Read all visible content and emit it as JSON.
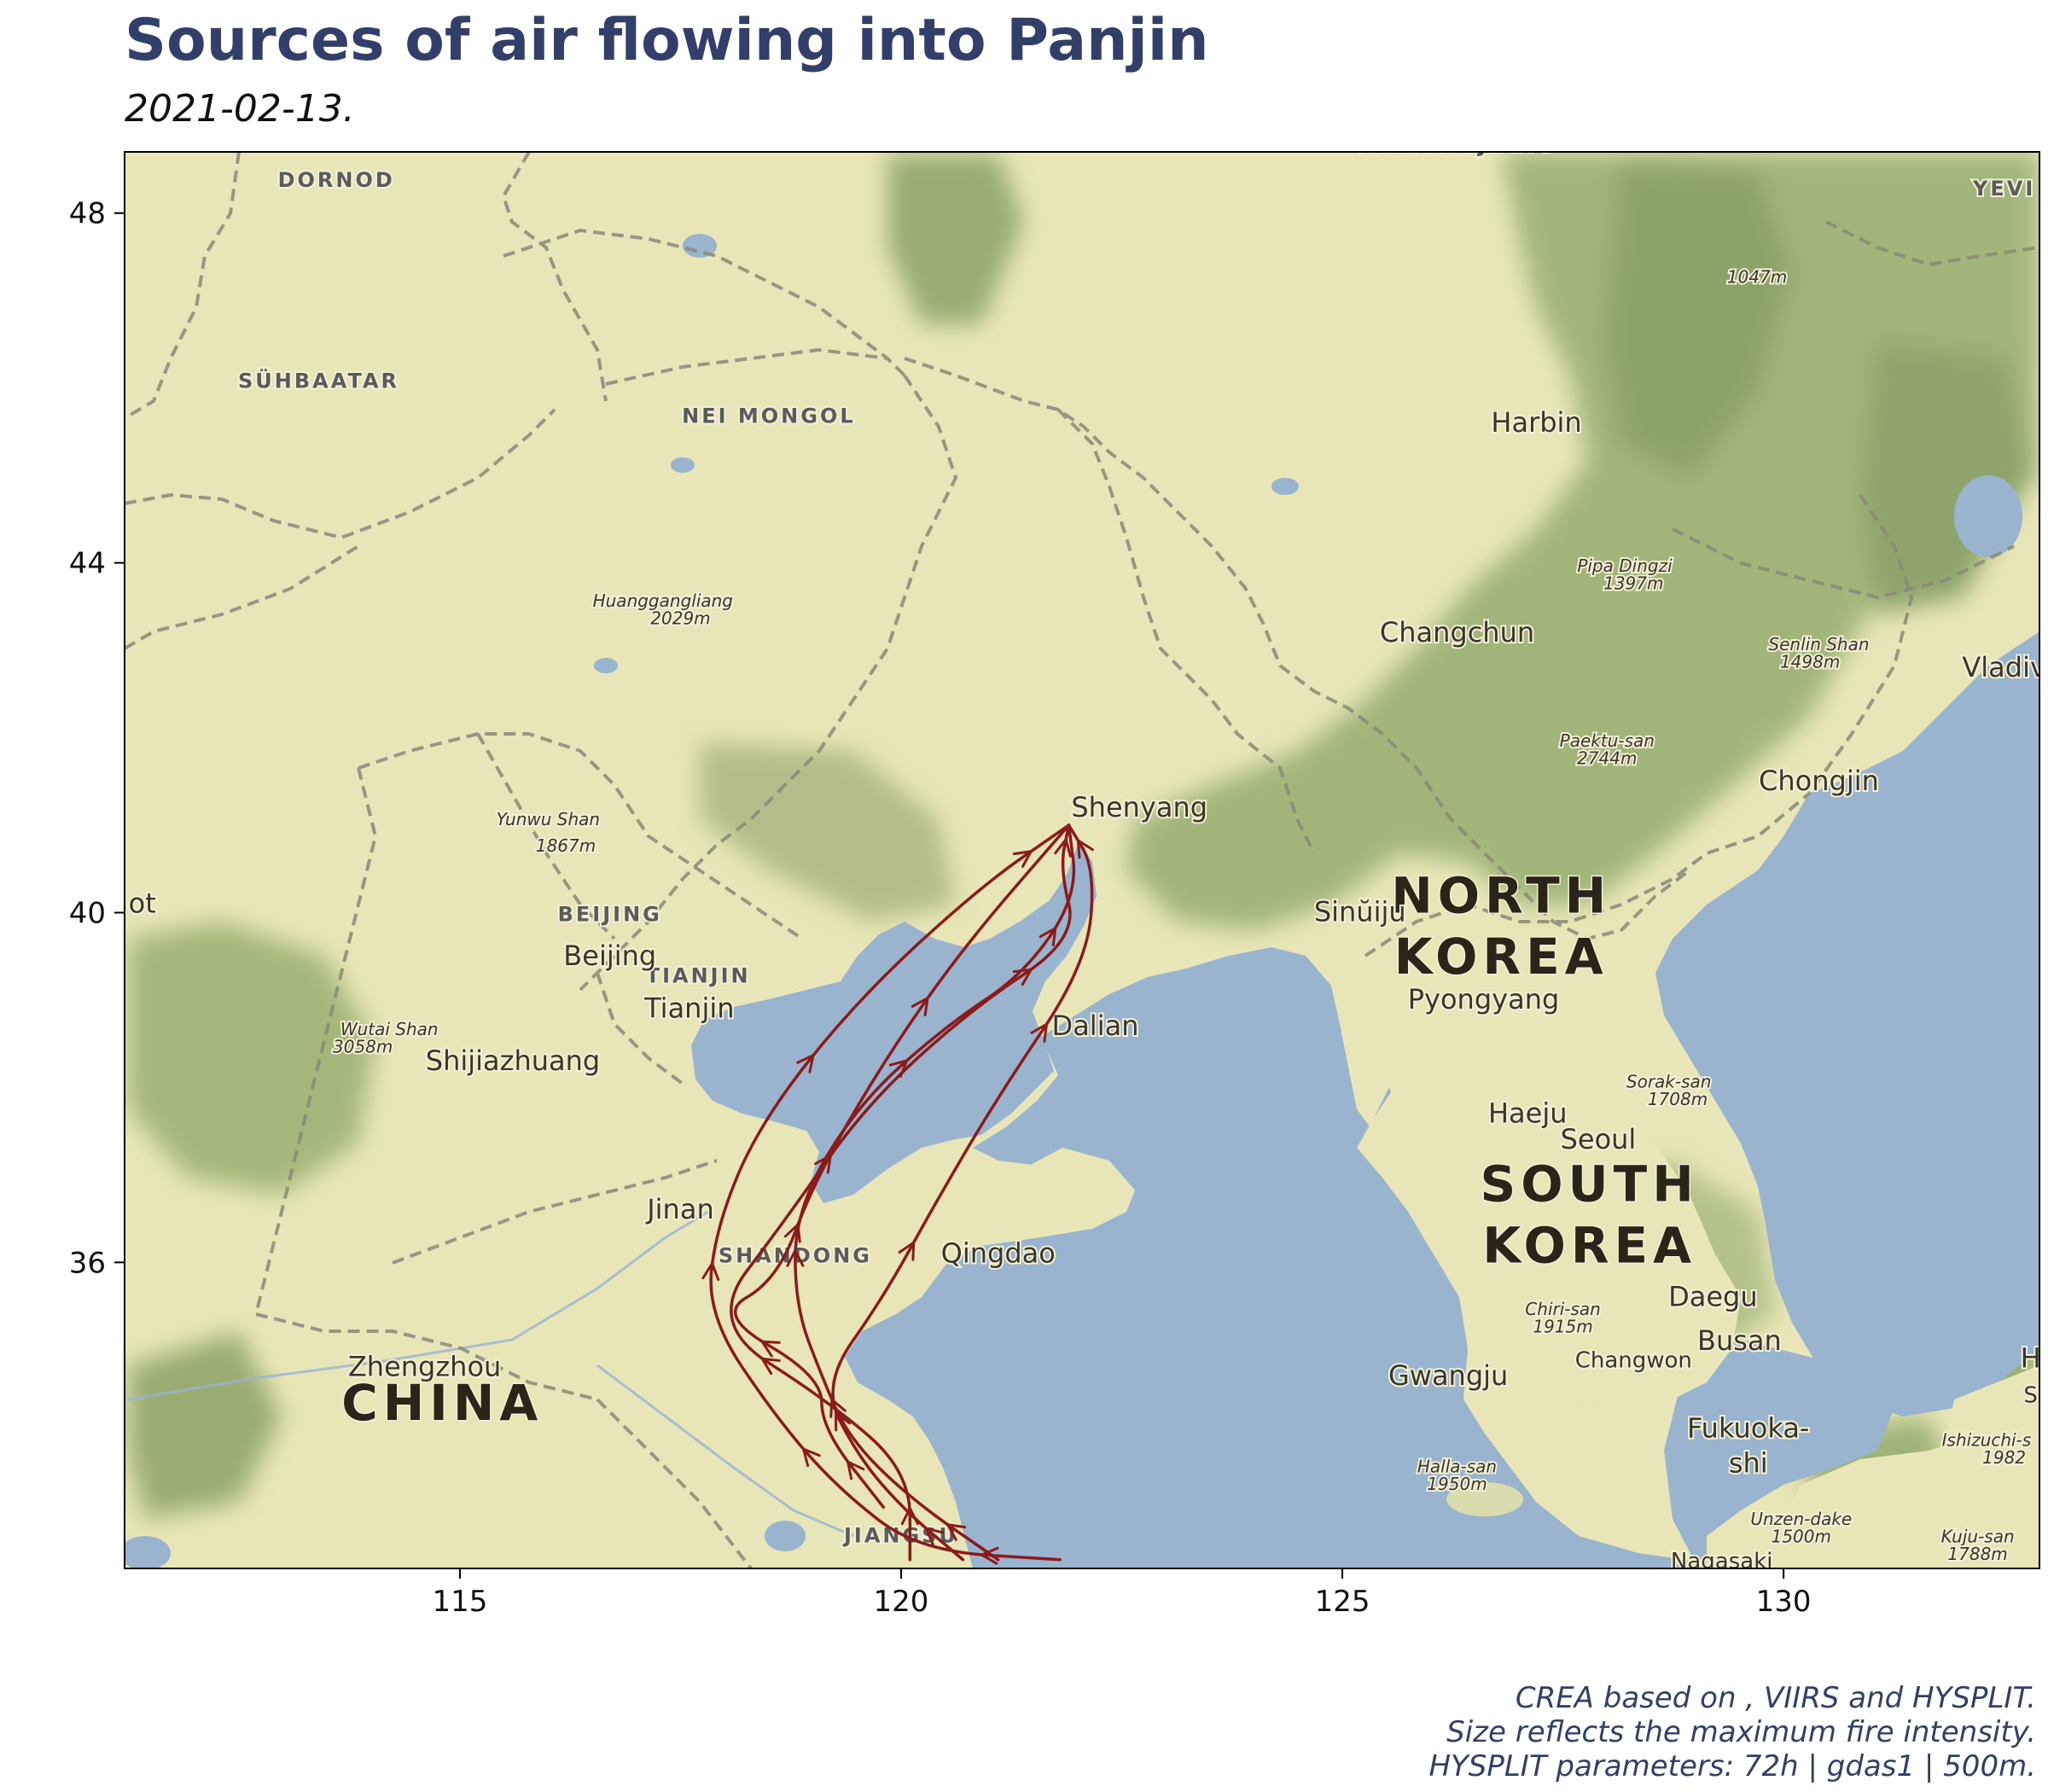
{
  "title": "Sources of air flowing into Panjin",
  "subtitle": "2021-02-13.",
  "caption": [
    "CREA based on , VIIRS and HYSPLIT.",
    "Size reflects the maximum fire intensity.",
    "HYSPLIT parameters: 72h | gdas1 | 500m."
  ],
  "colors": {
    "land": "#e8e6b8",
    "water": "#9ab3cf",
    "mountain": "#7e9a5c",
    "trajectory": "#8b1a1a",
    "title": "#333f6b"
  },
  "chart_data": {
    "type": "map",
    "x_ticks": [
      115,
      120,
      125,
      130
    ],
    "y_ticks": [
      48,
      44,
      40,
      36
    ],
    "xlim": [
      111.2,
      132.9
    ],
    "ylim": [
      32.5,
      48.7
    ],
    "place_labels": [
      {
        "text": "DORNOD",
        "lon": 113.6,
        "lat": 48.3,
        "style": "region"
      },
      {
        "text": "SÜHBAATAR",
        "lon": 113.4,
        "lat": 46.0,
        "style": "region"
      },
      {
        "text": "NEI MONGOL",
        "lon": 118.5,
        "lat": 45.6,
        "style": "region"
      },
      {
        "text": "HEILONGJIANG",
        "lon": 126.3,
        "lat": 48.7,
        "style": "region"
      },
      {
        "text": "YEVI",
        "lon": 132.5,
        "lat": 48.2,
        "style": "region"
      },
      {
        "text": "BEIJING",
        "lon": 116.7,
        "lat": 39.9,
        "style": "region"
      },
      {
        "text": "TIANJIN",
        "lon": 117.7,
        "lat": 39.2,
        "style": "region"
      },
      {
        "text": "SHANDONG",
        "lon": 118.8,
        "lat": 36.0,
        "style": "region"
      },
      {
        "text": "JIANGSU",
        "lon": 120.0,
        "lat": 32.8,
        "style": "region"
      },
      {
        "text": "CHINA",
        "lon": 114.8,
        "lat": 34.2,
        "style": "country"
      },
      {
        "text": "NORTH",
        "lon": 126.8,
        "lat": 40.0,
        "style": "country"
      },
      {
        "text": "KOREA",
        "lon": 126.8,
        "lat": 39.3,
        "style": "country"
      },
      {
        "text": "SOUTH",
        "lon": 127.8,
        "lat": 36.7,
        "style": "country"
      },
      {
        "text": "KOREA",
        "lon": 127.8,
        "lat": 36.0,
        "style": "country"
      },
      {
        "text": "Harbin",
        "lon": 127.2,
        "lat": 45.5,
        "style": "city"
      },
      {
        "text": "Changchun",
        "lon": 126.3,
        "lat": 43.1,
        "style": "city"
      },
      {
        "text": "Shenyang",
        "lon": 122.7,
        "lat": 41.1,
        "style": "city"
      },
      {
        "text": "Chongjin",
        "lon": 130.4,
        "lat": 41.4,
        "style": "city"
      },
      {
        "text": "Vladiv",
        "lon": 132.5,
        "lat": 42.7,
        "style": "city"
      },
      {
        "text": "Sinŭiju",
        "lon": 125.2,
        "lat": 39.9,
        "style": "city"
      },
      {
        "text": "Pyongyang",
        "lon": 126.6,
        "lat": 38.9,
        "style": "city"
      },
      {
        "text": "Dalian",
        "lon": 122.2,
        "lat": 38.6,
        "style": "city"
      },
      {
        "text": "Beijing",
        "lon": 116.7,
        "lat": 39.4,
        "style": "city"
      },
      {
        "text": "Tianjin",
        "lon": 117.6,
        "lat": 38.8,
        "style": "city"
      },
      {
        "text": "Shijiazhuang",
        "lon": 115.6,
        "lat": 38.2,
        "style": "city"
      },
      {
        "text": "Jinan",
        "lon": 117.5,
        "lat": 36.5,
        "style": "city"
      },
      {
        "text": "Qingdao",
        "lon": 121.1,
        "lat": 36.0,
        "style": "city"
      },
      {
        "text": "Zhengzhou",
        "lon": 114.6,
        "lat": 34.7,
        "style": "city"
      },
      {
        "text": "Haeju",
        "lon": 127.1,
        "lat": 37.6,
        "style": "city"
      },
      {
        "text": "Seoul",
        "lon": 127.9,
        "lat": 37.3,
        "style": "city"
      },
      {
        "text": "Daegu",
        "lon": 129.2,
        "lat": 35.5,
        "style": "city"
      },
      {
        "text": "Busan",
        "lon": 129.5,
        "lat": 35.0,
        "style": "city"
      },
      {
        "text": "Gwangju",
        "lon": 126.2,
        "lat": 34.6,
        "style": "city"
      },
      {
        "text": "Changwon",
        "lon": 128.3,
        "lat": 34.8,
        "style": "city-small"
      },
      {
        "text": "Fukuoka-",
        "lon": 129.6,
        "lat": 34.0,
        "style": "city"
      },
      {
        "text": "shi",
        "lon": 129.6,
        "lat": 33.6,
        "style": "city"
      },
      {
        "text": "ot",
        "lon": 111.4,
        "lat": 40.0,
        "style": "city"
      },
      {
        "text": "Huanggangliang",
        "lon": 117.3,
        "lat": 43.5,
        "style": "peak"
      },
      {
        "text": "2029m",
        "lon": 117.5,
        "lat": 43.3,
        "style": "peak"
      },
      {
        "text": "Yunwu Shan",
        "lon": 116.0,
        "lat": 41.0,
        "style": "peak"
      },
      {
        "text": "1867m",
        "lon": 116.2,
        "lat": 40.7,
        "style": "peak"
      },
      {
        "text": "Wutai Shan",
        "lon": 114.2,
        "lat": 38.6,
        "style": "peak"
      },
      {
        "text": "3058m",
        "lon": 113.9,
        "lat": 38.4,
        "style": "peak"
      },
      {
        "text": "1047m",
        "lon": 129.7,
        "lat": 47.2,
        "style": "peak"
      },
      {
        "text": "Pipa Dingzi",
        "lon": 128.2,
        "lat": 43.9,
        "style": "peak"
      },
      {
        "text": "1397m",
        "lon": 128.3,
        "lat": 43.7,
        "style": "peak"
      },
      {
        "text": "Senlin Shan",
        "lon": 130.4,
        "lat": 43.0,
        "style": "peak"
      },
      {
        "text": "1498m",
        "lon": 130.3,
        "lat": 42.8,
        "style": "peak"
      },
      {
        "text": "Paektu-san",
        "lon": 128.0,
        "lat": 41.9,
        "style": "peak"
      },
      {
        "text": "2744m",
        "lon": 128.0,
        "lat": 41.7,
        "style": "peak"
      },
      {
        "text": "Sorak-san",
        "lon": 128.7,
        "lat": 38.0,
        "style": "peak"
      },
      {
        "text": "1708m",
        "lon": 128.8,
        "lat": 37.8,
        "style": "peak"
      },
      {
        "text": "Chiri-san",
        "lon": 127.5,
        "lat": 35.4,
        "style": "peak"
      },
      {
        "text": "1915m",
        "lon": 127.5,
        "lat": 35.2,
        "style": "peak"
      },
      {
        "text": "Halla-san",
        "lon": 126.3,
        "lat": 33.6,
        "style": "peak"
      },
      {
        "text": "1950m",
        "lon": 126.3,
        "lat": 33.4,
        "style": "peak"
      },
      {
        "text": "Unzen-dake",
        "lon": 130.2,
        "lat": 33.0,
        "style": "peak"
      },
      {
        "text": "1500m",
        "lon": 130.2,
        "lat": 32.8,
        "style": "peak"
      },
      {
        "text": "Ishizuchi-s",
        "lon": 132.3,
        "lat": 33.9,
        "style": "peak"
      },
      {
        "text": "1982",
        "lon": 132.5,
        "lat": 33.7,
        "style": "peak"
      },
      {
        "text": "Kuju-san",
        "lon": 132.2,
        "lat": 32.8,
        "style": "peak"
      },
      {
        "text": "1788m",
        "lon": 132.2,
        "lat": 32.6,
        "style": "peak"
      },
      {
        "text": "Nagasaki",
        "lon": 129.3,
        "lat": 32.5,
        "style": "city-small"
      },
      {
        "text": "H",
        "lon": 132.8,
        "lat": 34.8,
        "style": "city"
      },
      {
        "text": "S",
        "lon": 132.8,
        "lat": 34.4,
        "style": "city-small"
      }
    ],
    "trajectories": [
      {
        "points": [
          [
            121.8,
            32.6
          ],
          [
            120.2,
            32.7
          ],
          [
            119.3,
            33.4
          ],
          [
            118.6,
            34.2
          ],
          [
            117.8,
            35.4
          ],
          [
            117.9,
            36.4
          ],
          [
            118.4,
            37.6
          ],
          [
            119.5,
            39.0
          ],
          [
            120.9,
            40.3
          ],
          [
            121.9,
            41.0
          ]
        ]
      },
      {
        "points": [
          [
            121.1,
            32.6
          ],
          [
            120.1,
            33.3
          ],
          [
            119.4,
            34.0
          ],
          [
            119.1,
            34.7
          ],
          [
            118.8,
            35.5
          ],
          [
            118.8,
            36.6
          ],
          [
            119.5,
            37.8
          ],
          [
            120.5,
            38.7
          ],
          [
            121.4,
            39.3
          ],
          [
            122.0,
            40.2
          ],
          [
            121.9,
            41.0
          ]
        ]
      },
      {
        "points": [
          [
            120.7,
            32.6
          ],
          [
            120.0,
            33.2
          ],
          [
            119.5,
            33.8
          ],
          [
            119.1,
            34.6
          ],
          [
            119.8,
            35.6
          ],
          [
            120.4,
            36.7
          ],
          [
            121.1,
            37.9
          ],
          [
            122.1,
            39.4
          ],
          [
            122.2,
            40.5
          ],
          [
            121.9,
            41.0
          ]
        ]
      },
      {
        "points": [
          [
            120.1,
            32.6
          ],
          [
            120.1,
            33.6
          ],
          [
            119.2,
            34.4
          ],
          [
            117.8,
            35.3
          ],
          [
            118.7,
            36.5
          ],
          [
            119.6,
            37.8
          ],
          [
            120.8,
            38.9
          ],
          [
            122.0,
            39.7
          ],
          [
            121.8,
            40.5
          ],
          [
            121.9,
            41.0
          ]
        ]
      },
      {
        "points": [
          [
            119.8,
            33.2
          ],
          [
            119.1,
            34.1
          ],
          [
            119.1,
            34.7
          ],
          [
            117.9,
            35.4
          ],
          [
            118.6,
            35.8
          ],
          [
            119.0,
            36.9
          ],
          [
            119.8,
            38.3
          ],
          [
            120.7,
            39.6
          ],
          [
            121.9,
            41.0
          ]
        ]
      }
    ]
  }
}
